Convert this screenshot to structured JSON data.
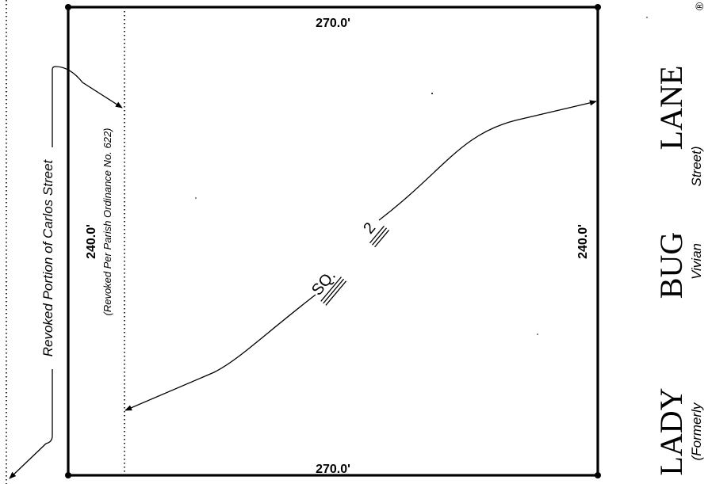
{
  "dimensions": {
    "top": "270.0'",
    "bottom": "270.0'",
    "left": "240.0'",
    "right": "240.0'"
  },
  "revoked_street_label": "Revoked Portion of Carlos Street",
  "revoked_note": "(Revoked Per Parish Ordinance No. 622)",
  "square": {
    "label_sq": "SQ.",
    "number": "2"
  },
  "street": {
    "name_words": [
      "LADY",
      "BUG",
      "LANE"
    ],
    "former_words": [
      "(Formerly",
      "Vivian",
      "Street)"
    ]
  },
  "corner_symbol": "®"
}
